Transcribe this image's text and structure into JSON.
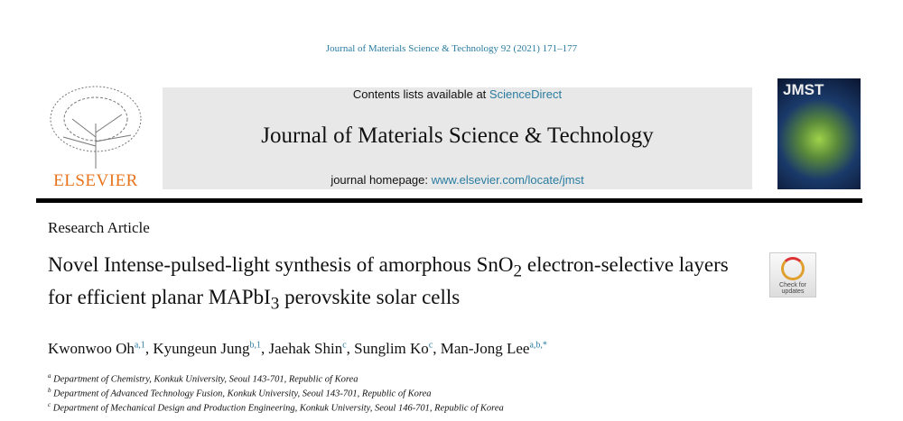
{
  "journal_line": "Journal of Materials Science & Technology 92 (2021) 171–177",
  "publisher": "ELSEVIER",
  "header": {
    "contents_prefix": "Contents lists available at ",
    "contents_link": "ScienceDirect",
    "journal_title": "Journal of Materials Science & Technology",
    "homepage_prefix": "journal homepage: ",
    "homepage_link": "www.elsevier.com/locate/jmst"
  },
  "cover": {
    "label": "JMST"
  },
  "article_type": "Research Article",
  "title": {
    "part1": "Novel Intense-pulsed-light synthesis of amorphous SnO",
    "sub1": "2",
    "part2": " electron-selective layers for efficient planar MAPbI",
    "sub2": "3",
    "part3": " perovskite solar cells"
  },
  "authors": [
    {
      "name": "Kwonwoo Oh",
      "sup": "a,1"
    },
    {
      "name": "Kyungeun Jung",
      "sup": "b,1"
    },
    {
      "name": "Jaehak Shin",
      "sup": "c"
    },
    {
      "name": "Sunglim Ko",
      "sup": "c"
    },
    {
      "name": "Man-Jong Lee",
      "sup": "a,b,*"
    }
  ],
  "affiliations": [
    {
      "mark": "a",
      "text": "Department of Chemistry, Konkuk University, Seoul 143-701, Republic of Korea"
    },
    {
      "mark": "b",
      "text": "Department of Advanced Technology Fusion, Konkuk University, Seoul 143-701, Republic of Korea"
    },
    {
      "mark": "c",
      "text": "Department of Mechanical Design and Production Engineering, Konkuk University, Seoul 146-701, Republic of Korea"
    }
  ],
  "check_badge": {
    "line1": "Check for",
    "line2": "updates"
  }
}
